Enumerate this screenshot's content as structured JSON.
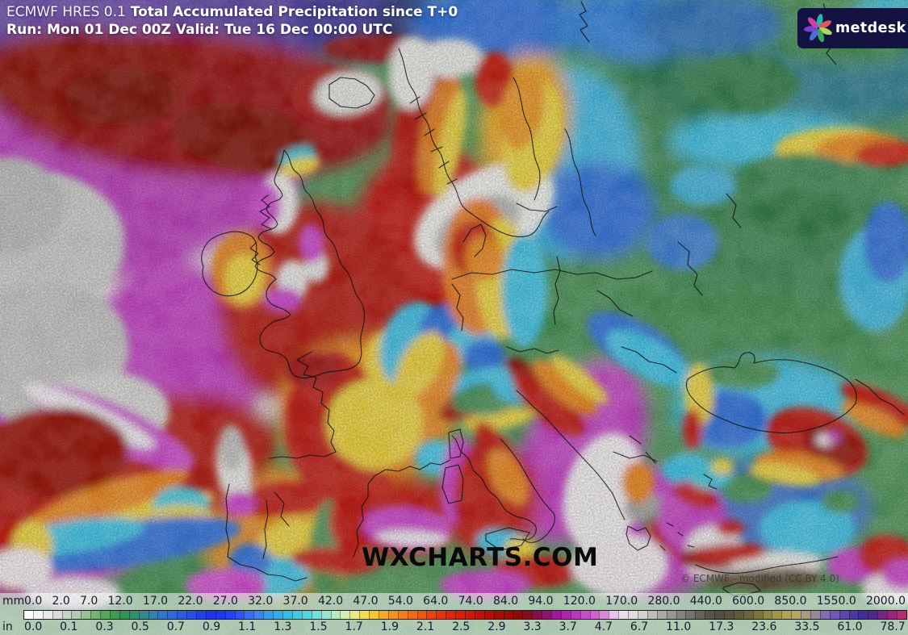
{
  "header": {
    "model": "ECMWF HRES 0.1",
    "title": "Total Accumulated Precipitation since T+0",
    "run_valid": "Run: Mon 01 Dec 00Z Valid: Tue 16 Dec 00:00 UTC"
  },
  "logo": {
    "text": "metdesk",
    "background": "#131341",
    "petal_colors": [
      "#2ab4ae",
      "#e05464",
      "#aed45e",
      "#3da45c",
      "#4a6fd8",
      "#7a42cc",
      "#cf3fa8"
    ]
  },
  "watermark": "WXCHARTS.COM",
  "attribution": "© ECMWF - modified (CC BY 4.0)",
  "legend": {
    "unit_top": "mm",
    "unit_bottom": "in",
    "mm_values": [
      "0.0",
      "2.0",
      "7.0",
      "12.0",
      "17.0",
      "22.0",
      "27.0",
      "32.0",
      "37.0",
      "42.0",
      "47.0",
      "54.0",
      "64.0",
      "74.0",
      "84.0",
      "94.0",
      "120.0",
      "170.0",
      "280.0",
      "440.0",
      "600.0",
      "850.0",
      "1550.0",
      "2000.0"
    ],
    "in_values": [
      "0.0",
      "0.1",
      "0.3",
      "0.5",
      "0.7",
      "0.9",
      "1.1",
      "1.3",
      "1.5",
      "1.7",
      "1.9",
      "2.1",
      "2.5",
      "2.9",
      "3.3",
      "3.7",
      "4.7",
      "6.7",
      "11.0",
      "17.3",
      "23.6",
      "33.5",
      "61.0",
      "78.7"
    ],
    "colorbar_anchors": [
      "#ffffff",
      "#efefef",
      "#d4d6d2",
      "#a9c6a9",
      "#5fae62",
      "#2f9448",
      "#2d9179",
      "#3579c4",
      "#2f63d6",
      "#2548e2",
      "#1c30e8",
      "#2a46ee",
      "#3f7af0",
      "#35a5e8",
      "#2fc5e2",
      "#62dcda",
      "#a5e9cf",
      "#e4efa5",
      "#f5d534",
      "#f29a26",
      "#ee7518",
      "#e84e10",
      "#df2c08",
      "#d11d06",
      "#bc0f04",
      "#a00b04",
      "#870c0a",
      "#84105e",
      "#a81ca8",
      "#c043c0",
      "#d26cd2",
      "#f2ddf2",
      "#dcdcda",
      "#b2b2b0",
      "#8c8c8a",
      "#6b6b64",
      "#4c4c44",
      "#59543a",
      "#6f6a3c",
      "#999044",
      "#bcab56",
      "#a39788",
      "#7a5fc0",
      "#503da8",
      "#392a92",
      "#8c2478",
      "#c42e6e"
    ],
    "segments": 92,
    "background_opacity": 0.52
  }
}
